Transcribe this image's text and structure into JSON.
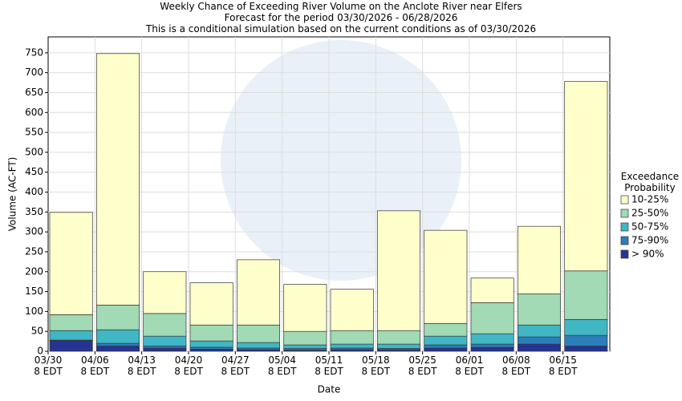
{
  "chart_data": {
    "type": "stacked_bar",
    "title": "Weekly Chance of Exceeding River Volume on the Anclote River near Elfers",
    "subtitle": "Forecast for the period 03/30/2026 - 06/28/2026",
    "note": "This is a conditional simulation based on the current conditions as of 03/30/2026",
    "x_label": "Date",
    "y_label": "Volume (AC-FT)",
    "legend_title": "Exceedance Probability",
    "categories": [
      "03/30\n8 EDT",
      "04/06\n8 EDT",
      "04/13\n8 EDT",
      "04/20\n8 EDT",
      "04/27\n8 EDT",
      "05/04\n8 EDT",
      "05/11\n8 EDT",
      "05/18\n8 EDT",
      "05/25\n8 EDT",
      "06/01\n8 EDT",
      "06/08\n8 EDT",
      "06/15\n8 EDT"
    ],
    "series": [
      {
        "name": "> 90%",
        "color": "#253494",
        "values": [
          27,
          13,
          8,
          5,
          4,
          3,
          4,
          4,
          8,
          10,
          18,
          13
        ]
      },
      {
        "name": "75-90%",
        "color": "#2c7fb8",
        "values": [
          1,
          7,
          5,
          5,
          4,
          4,
          4,
          3,
          8,
          8,
          18,
          27
        ]
      },
      {
        "name": "50-75%",
        "color": "#41b6c4",
        "values": [
          24,
          34,
          25,
          16,
          14,
          9,
          10,
          11,
          22,
          26,
          30,
          40
        ]
      },
      {
        "name": "25-50%",
        "color": "#a1dab4",
        "values": [
          40,
          62,
          57,
          40,
          44,
          34,
          34,
          34,
          32,
          78,
          78,
          122
        ]
      },
      {
        "name": "10-25%",
        "color": "#ffffcc",
        "values": [
          257,
          632,
          105,
          106,
          164,
          118,
          104,
          301,
          234,
          62,
          170,
          476
        ]
      }
    ],
    "ylim": [
      0,
      790
    ],
    "yticks": [
      0,
      50,
      100,
      150,
      200,
      250,
      300,
      350,
      400,
      450,
      500,
      550,
      600,
      650,
      700,
      750
    ],
    "grid": true
  }
}
